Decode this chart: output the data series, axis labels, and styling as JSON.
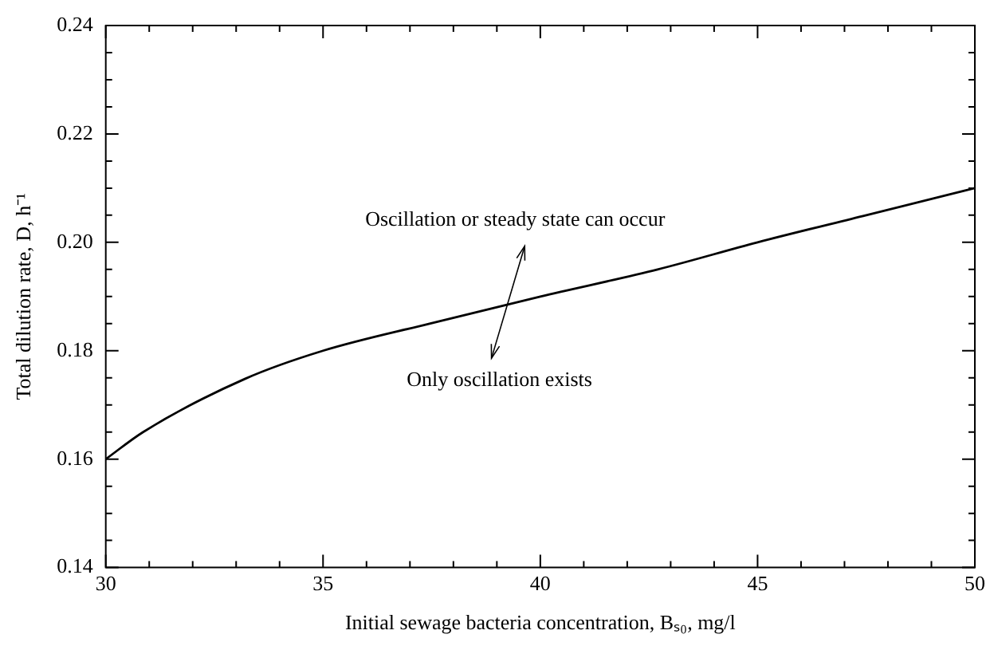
{
  "chart_data": {
    "type": "line",
    "xlabel": "Initial sewage bacteria concentration, Bₛ₀, mg/l",
    "ylabel": "Total dilution rate, D, h⁻¹",
    "x": [
      30,
      30.86,
      33.2,
      35,
      37.45,
      40,
      42.7,
      45,
      47.5,
      50
    ],
    "series": [
      {
        "color": "#000000",
        "values": [
          0.16,
          0.165,
          0.1748,
          0.18,
          0.185,
          0.19,
          0.195,
          0.2,
          0.205,
          0.21
        ]
      }
    ],
    "xlim": [
      30,
      50
    ],
    "xticks": [
      30,
      {
        "value": 31,
        "label": null
      },
      {
        "value": 32,
        "label": null
      },
      {
        "value": 33,
        "label": null
      },
      {
        "value": 34,
        "label": null
      },
      35,
      {
        "value": 36,
        "label": null
      },
      {
        "value": 37,
        "label": null
      },
      {
        "value": 38,
        "label": null
      },
      {
        "value": 39,
        "label": null
      },
      40,
      {
        "value": 41,
        "label": null
      },
      {
        "value": 42,
        "label": null
      },
      {
        "value": 43,
        "label": null
      },
      {
        "value": 44,
        "label": null
      },
      45,
      {
        "value": 46,
        "label": null
      },
      {
        "value": 47,
        "label": null
      },
      {
        "value": 48,
        "label": null
      },
      {
        "value": 49,
        "label": null
      },
      50
    ],
    "ylim": [
      0.14,
      0.24
    ],
    "yticks": [
      {
        "value": 0.14,
        "label": "0.14"
      },
      {
        "value": 0.145,
        "label": null
      },
      {
        "value": 0.15,
        "label": null
      },
      {
        "value": 0.155,
        "label": null
      },
      {
        "value": 0.16,
        "label": "0.16"
      },
      {
        "value": 0.165,
        "label": null
      },
      {
        "value": 0.17,
        "label": null
      },
      {
        "value": 0.175,
        "label": null
      },
      {
        "value": 0.18,
        "label": "0.18"
      },
      {
        "value": 0.185,
        "label": null
      },
      {
        "value": 0.19,
        "label": null
      },
      {
        "value": 0.195,
        "label": null
      },
      {
        "value": 0.2,
        "label": "0.20"
      },
      {
        "value": 0.205,
        "label": null
      },
      {
        "value": 0.21,
        "label": null
      },
      {
        "value": 0.215,
        "label": null
      },
      {
        "value": 0.22,
        "label": "0.22"
      },
      {
        "value": 0.225,
        "label": null
      },
      {
        "value": 0.23,
        "label": null
      },
      {
        "value": 0.235,
        "label": null
      },
      {
        "value": 0.24,
        "label": "0.24"
      }
    ],
    "annotations": [
      "Oscillation or steady state can occur",
      "Only oscillation exists"
    ],
    "grid": false,
    "legend": false,
    "marker": "none",
    "line_style": "solid"
  }
}
